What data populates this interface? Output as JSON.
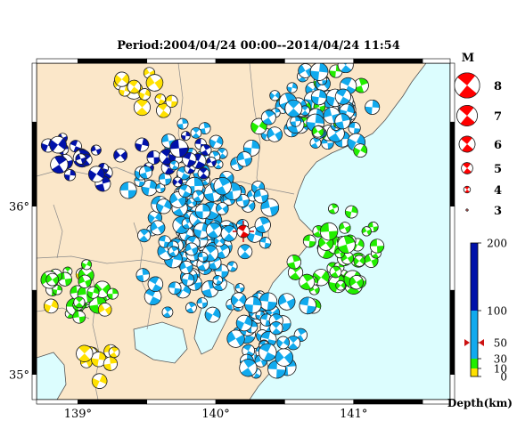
{
  "title": "Period:2004/04/24 00:00--2014/04/24 11:54",
  "map": {
    "lon_range": [
      138.7,
      141.7
    ],
    "lat_range": [
      34.85,
      36.85
    ],
    "lon_ticks": [
      {
        "v": 139,
        "label": "139°"
      },
      {
        "v": 140,
        "label": "140°"
      },
      {
        "v": 141,
        "label": "141°"
      }
    ],
    "lat_ticks": [
      {
        "v": 35,
        "label": "35°"
      },
      {
        "v": 36,
        "label": "36°"
      }
    ],
    "colors": {
      "land": "#fbe7c9",
      "sea": "#dcfdfe",
      "border": "#8a8a8a"
    },
    "highlight_event": {
      "lon": 140.2,
      "lat": 35.85,
      "magnitude": 5,
      "depth_km": 50
    }
  },
  "magnitude_legend": {
    "title": "M",
    "items": [
      {
        "label": "8",
        "magnitude": 8
      },
      {
        "label": "7",
        "magnitude": 7
      },
      {
        "label": "6",
        "magnitude": 6
      },
      {
        "label": "5",
        "magnitude": 5
      },
      {
        "label": "4",
        "magnitude": 4
      },
      {
        "label": "3",
        "magnitude": 3
      }
    ],
    "color": "#ff0000"
  },
  "depth_scale": {
    "title": "Depth(km)",
    "ticks": [
      {
        "v": 0,
        "label": "0"
      },
      {
        "v": 10,
        "label": "10"
      },
      {
        "v": 30,
        "label": "30"
      },
      {
        "v": 50,
        "label": "50"
      },
      {
        "v": 100,
        "label": "100"
      },
      {
        "v": 200,
        "label": "200"
      }
    ],
    "bands": [
      {
        "from": 0,
        "to": 10,
        "color": "#ffe100"
      },
      {
        "from": 10,
        "to": 30,
        "color": "#22ee00"
      },
      {
        "from": 30,
        "to": 100,
        "color": "#11aaee"
      },
      {
        "from": 100,
        "to": 200,
        "color": "#0011aa"
      }
    ],
    "marker_depth": 50
  }
}
